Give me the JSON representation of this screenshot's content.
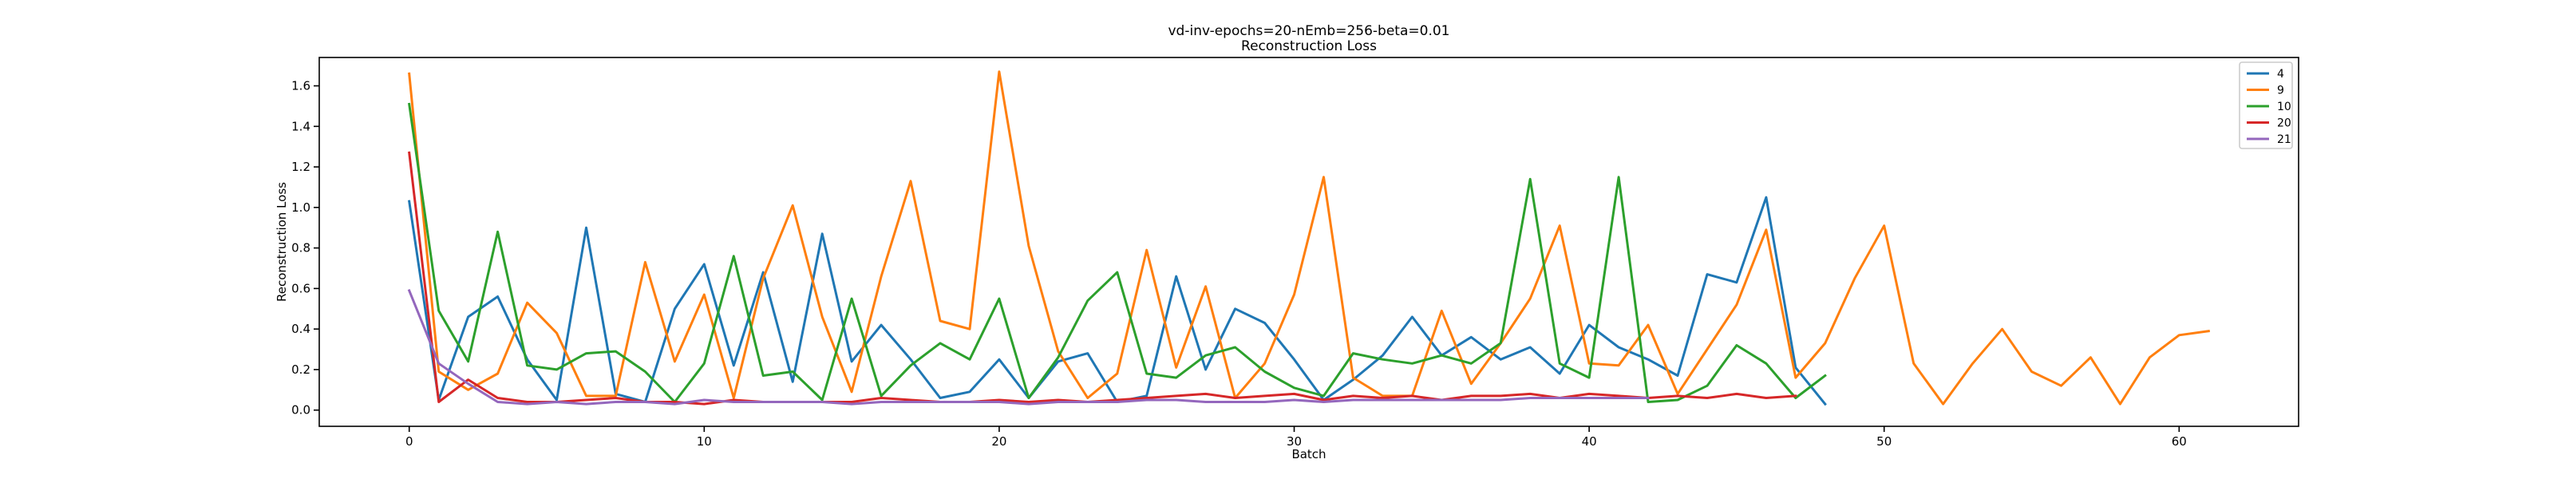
{
  "chart_data": {
    "type": "line",
    "title": "vd-inv-epochs=20-nEmb=256-beta=0.01",
    "subtitle": "Reconstruction Loss",
    "xlabel": "Batch",
    "ylabel": "Reconstruction Loss",
    "xlim": [
      -3.05,
      64.05
    ],
    "ylim": [
      -0.08,
      1.74
    ],
    "xticks": [
      0,
      10,
      20,
      30,
      40,
      50,
      60
    ],
    "yticks": [
      0.0,
      0.2,
      0.4,
      0.6,
      0.8,
      1.0,
      1.2,
      1.4,
      1.6
    ],
    "ytick_labels": [
      "0.0",
      "0.2",
      "0.4",
      "0.6",
      "0.8",
      "1.0",
      "1.2",
      "1.4",
      "1.6"
    ],
    "grid": false,
    "legend_position": "top-right",
    "series": [
      {
        "name": "4",
        "color": "#1f77b4",
        "values": [
          1.03,
          0.05,
          0.46,
          0.56,
          0.25,
          0.05,
          0.9,
          0.08,
          0.04,
          0.5,
          0.72,
          0.22,
          0.68,
          0.14,
          0.87,
          0.24,
          0.42,
          0.25,
          0.06,
          0.09,
          0.25,
          0.06,
          0.24,
          0.28,
          0.04,
          0.07,
          0.66,
          0.2,
          0.5,
          0.43,
          0.25,
          0.05,
          0.15,
          0.27,
          0.46,
          0.27,
          0.36,
          0.25,
          0.31,
          0.18,
          0.42,
          0.31,
          0.25,
          0.17,
          0.67,
          0.63,
          1.05,
          0.21,
          0.03
        ]
      },
      {
        "name": "9",
        "color": "#ff7f0e",
        "values": [
          1.66,
          0.19,
          0.1,
          0.18,
          0.53,
          0.38,
          0.07,
          0.07,
          0.73,
          0.24,
          0.57,
          0.06,
          0.65,
          1.01,
          0.46,
          0.09,
          0.66,
          1.13,
          0.44,
          0.4,
          1.67,
          0.81,
          0.29,
          0.06,
          0.18,
          0.79,
          0.21,
          0.61,
          0.06,
          0.23,
          0.57,
          1.15,
          0.16,
          0.07,
          0.07,
          0.49,
          0.13,
          0.33,
          0.55,
          0.91,
          0.23,
          0.22,
          0.42,
          0.08,
          0.3,
          0.52,
          0.89,
          0.16,
          0.33,
          0.65,
          0.91,
          0.23,
          0.03,
          0.23,
          0.4,
          0.19,
          0.12,
          0.26,
          0.03,
          0.26,
          0.37,
          0.39
        ]
      },
      {
        "name": "10",
        "color": "#2ca02c",
        "values": [
          1.51,
          0.49,
          0.24,
          0.88,
          0.22,
          0.2,
          0.28,
          0.29,
          0.19,
          0.04,
          0.23,
          0.76,
          0.17,
          0.19,
          0.05,
          0.55,
          0.07,
          0.22,
          0.33,
          0.25,
          0.55,
          0.06,
          0.26,
          0.54,
          0.68,
          0.18,
          0.16,
          0.27,
          0.31,
          0.19,
          0.11,
          0.07,
          0.28,
          0.25,
          0.23,
          0.27,
          0.23,
          0.33,
          1.14,
          0.23,
          0.16,
          1.15,
          0.04,
          0.05,
          0.12,
          0.32,
          0.23,
          0.06,
          0.17
        ]
      },
      {
        "name": "20",
        "color": "#d62728",
        "values": [
          1.27,
          0.04,
          0.15,
          0.06,
          0.04,
          0.04,
          0.05,
          0.06,
          0.04,
          0.04,
          0.03,
          0.05,
          0.04,
          0.04,
          0.04,
          0.04,
          0.06,
          0.05,
          0.04,
          0.04,
          0.05,
          0.04,
          0.05,
          0.04,
          0.05,
          0.06,
          0.07,
          0.08,
          0.06,
          0.07,
          0.08,
          0.05,
          0.07,
          0.06,
          0.07,
          0.05,
          0.07,
          0.07,
          0.08,
          0.06,
          0.08,
          0.07,
          0.06,
          0.07,
          0.06,
          0.08,
          0.06,
          0.07
        ]
      },
      {
        "name": "21",
        "color": "#9467bd",
        "values": [
          0.59,
          0.23,
          0.13,
          0.04,
          0.03,
          0.04,
          0.03,
          0.04,
          0.04,
          0.03,
          0.05,
          0.04,
          0.04,
          0.04,
          0.04,
          0.03,
          0.04,
          0.04,
          0.04,
          0.04,
          0.04,
          0.03,
          0.04,
          0.04,
          0.04,
          0.05,
          0.05,
          0.04,
          0.04,
          0.04,
          0.05,
          0.04,
          0.05,
          0.05,
          0.05,
          0.05,
          0.05,
          0.05,
          0.06,
          0.06,
          0.06,
          0.06,
          0.06
        ]
      }
    ]
  }
}
